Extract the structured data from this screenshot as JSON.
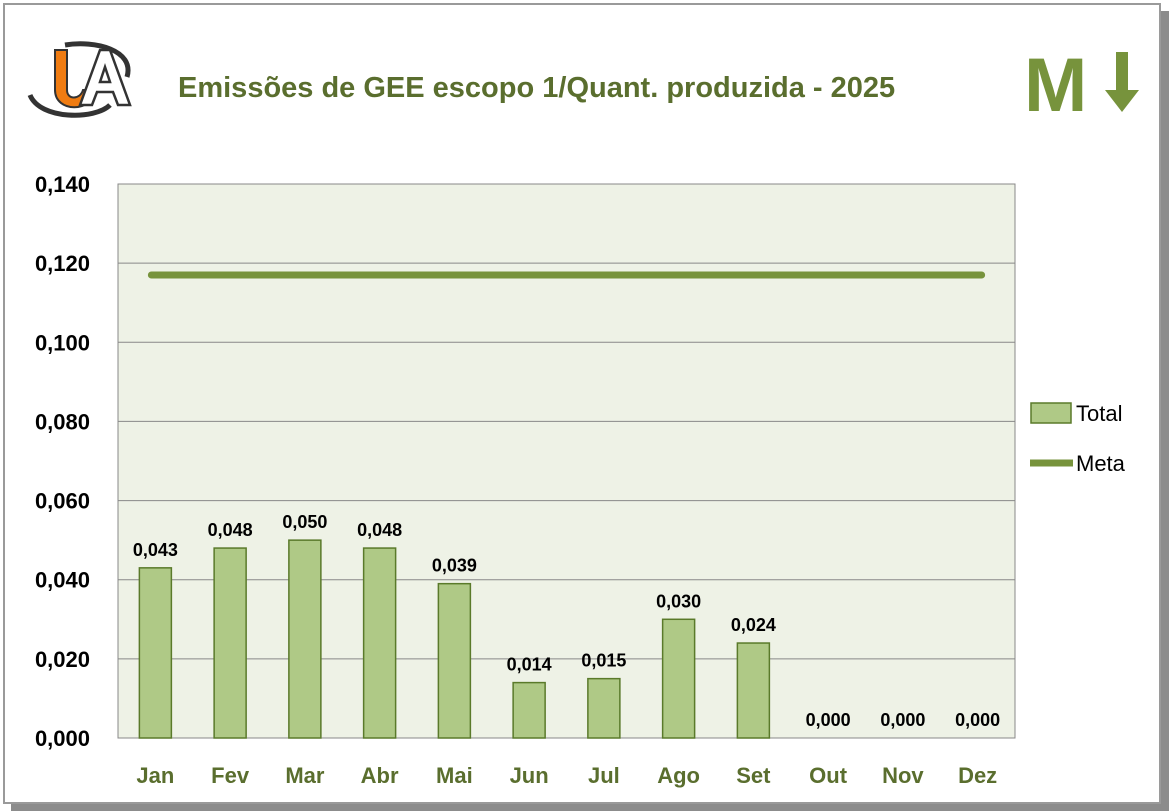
{
  "chart_data": {
    "type": "bar",
    "title": "Emissões de GEE escopo 1/Quant. produzida - 2025",
    "categories": [
      "Jan",
      "Fev",
      "Mar",
      "Abr",
      "Mai",
      "Jun",
      "Jul",
      "Ago",
      "Set",
      "Out",
      "Nov",
      "Dez"
    ],
    "series": [
      {
        "name": "Total",
        "type": "bar",
        "color": "#afc986",
        "values": [
          0.043,
          0.048,
          0.05,
          0.048,
          0.039,
          0.014,
          0.015,
          0.03,
          0.024,
          0.0,
          0.0,
          0.0
        ],
        "labels": [
          "0,043",
          "0,048",
          "0,050",
          "0,048",
          "0,039",
          "0,014",
          "0,015",
          "0,030",
          "0,024",
          "0,000",
          "0,000",
          "0,000"
        ]
      },
      {
        "name": "Meta",
        "type": "line",
        "color": "#77933c",
        "values": [
          0.117,
          0.117,
          0.117,
          0.117,
          0.117,
          0.117,
          0.117,
          0.117,
          0.117,
          0.117,
          0.117,
          0.117
        ]
      }
    ],
    "ylim": [
      0,
      0.14
    ],
    "yticks": [
      "0,000",
      "0,020",
      "0,040",
      "0,060",
      "0,080",
      "0,100",
      "0,120",
      "0,140"
    ],
    "grid": true,
    "legend": "right",
    "plot_background": "#eef2e6"
  },
  "header": {
    "logo_text": "UA",
    "indicator_letter": "M",
    "indicator_icon": "arrow-down-icon"
  }
}
